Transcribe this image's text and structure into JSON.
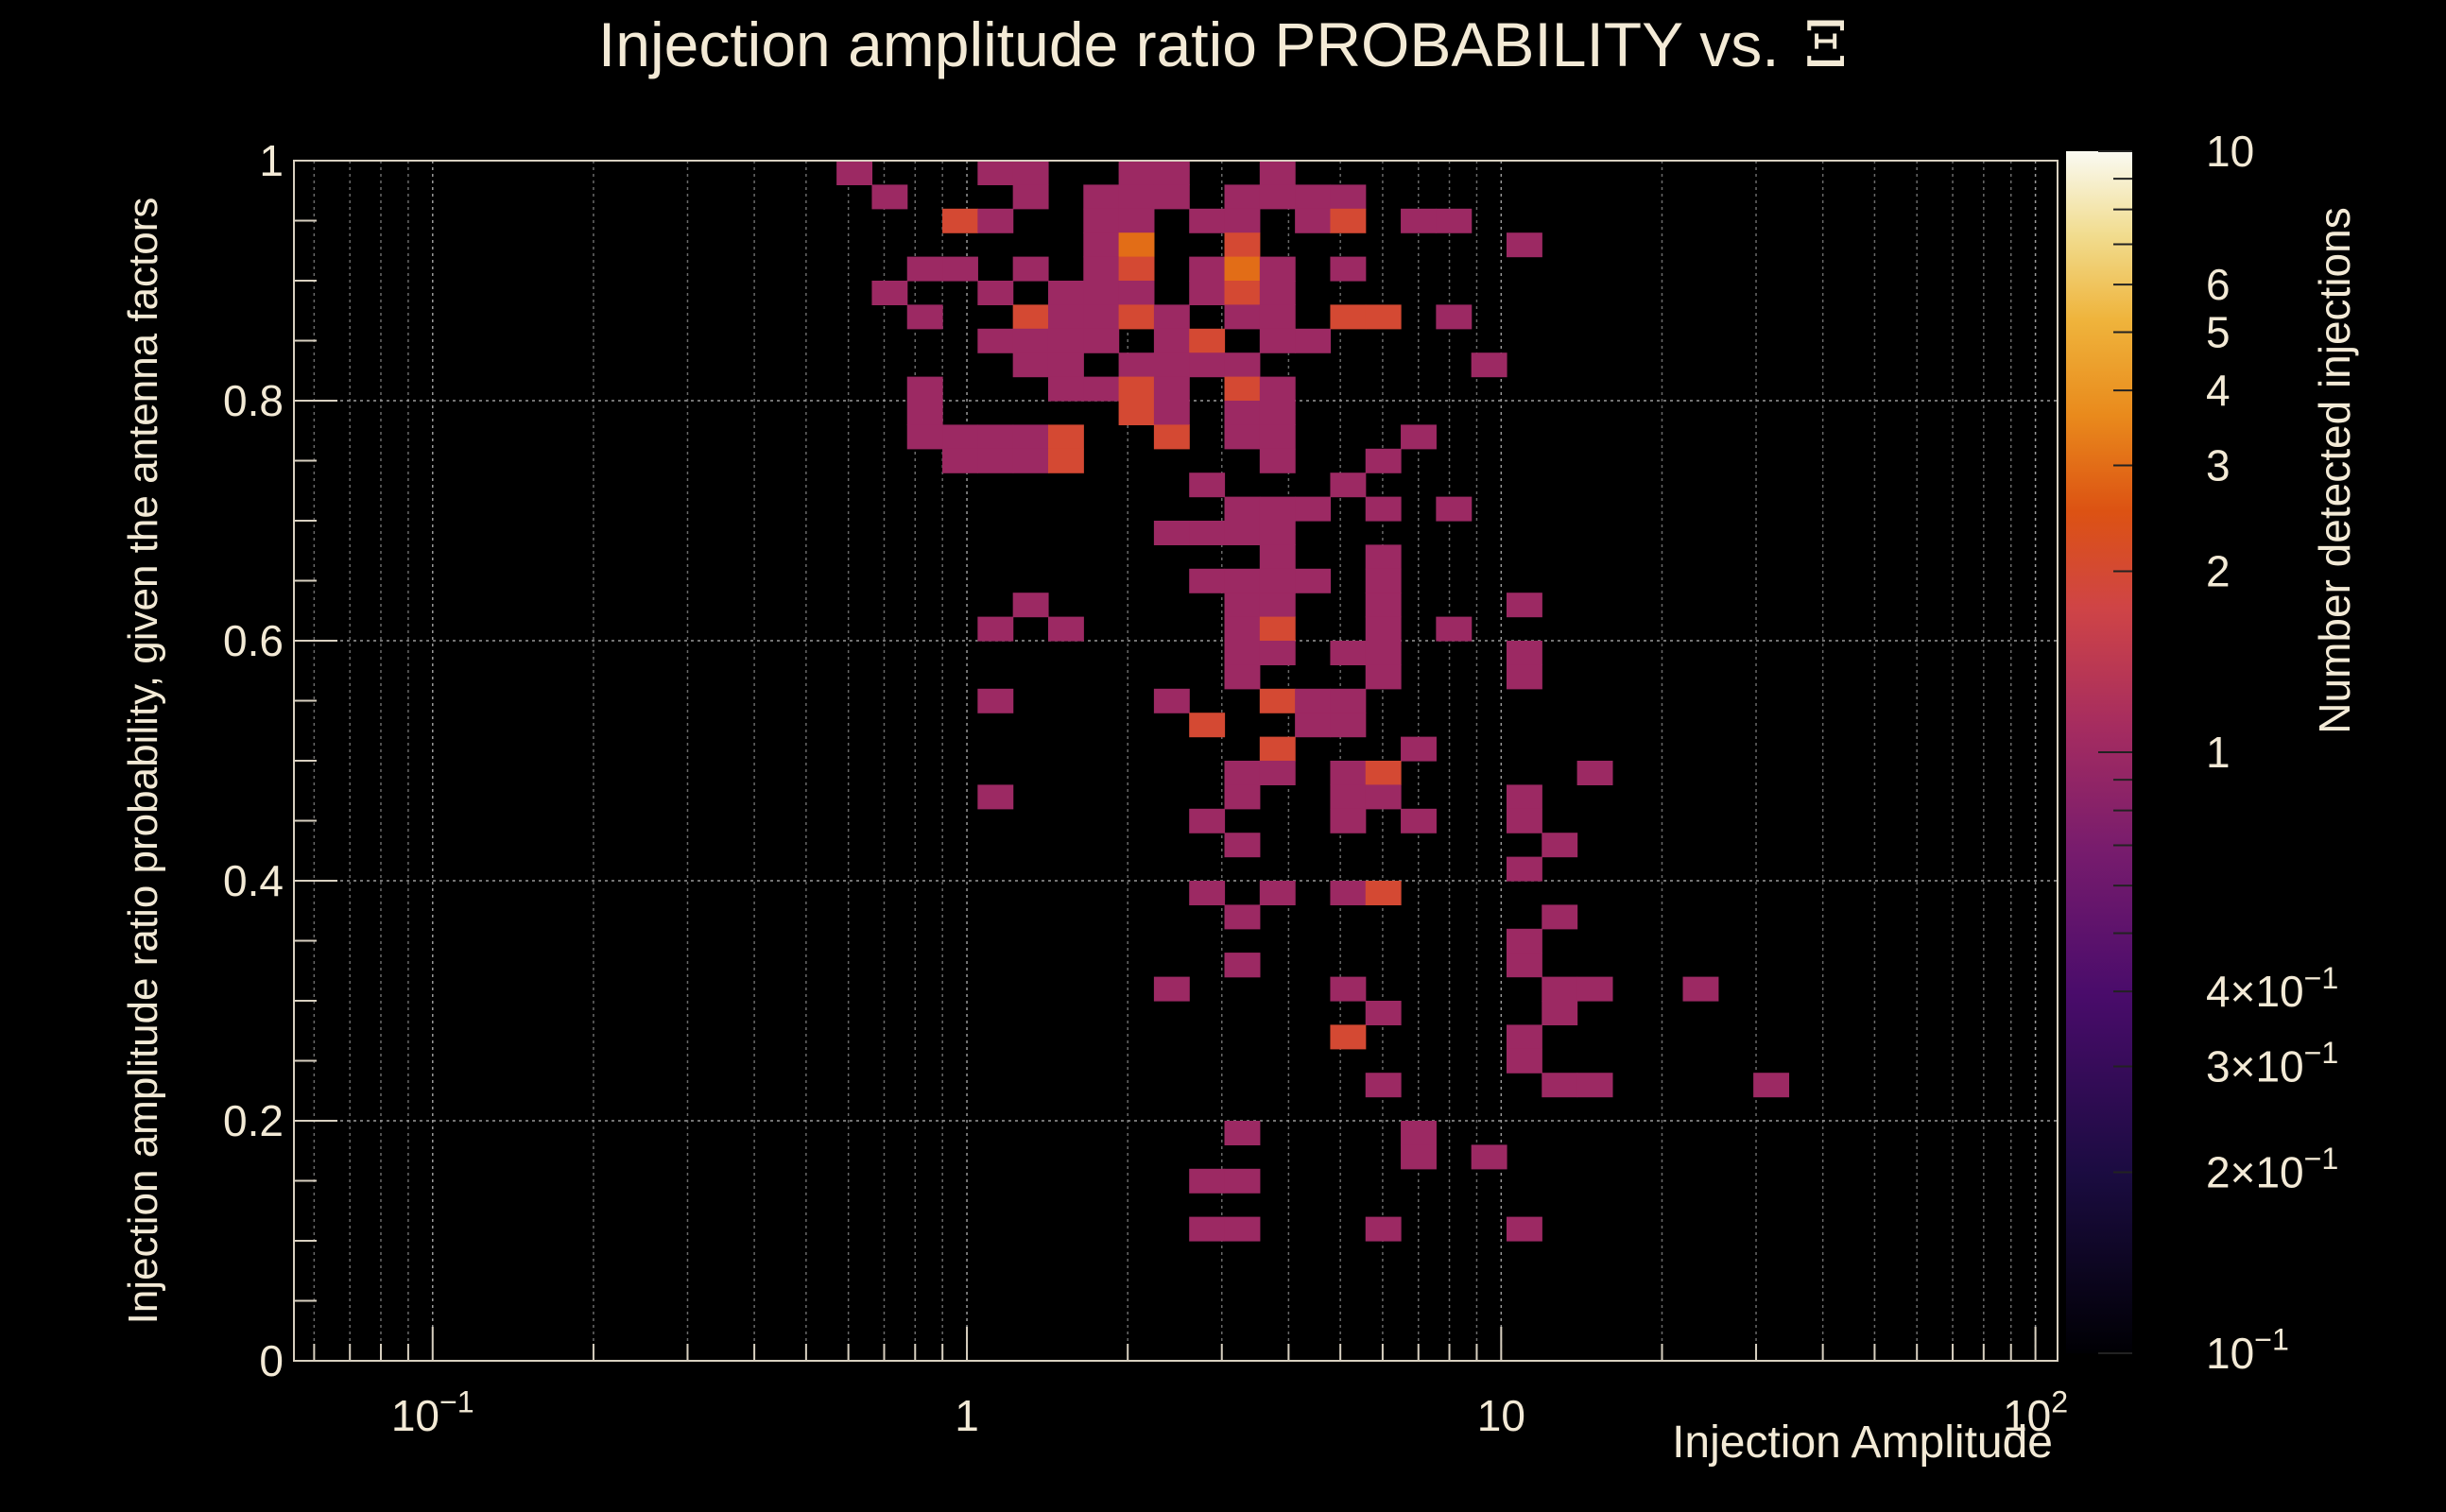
{
  "chart_data": {
    "type": "heatmap",
    "title": "Injection amplitude ratio PROBABILITY vs.",
    "title_symbol": "Ξ",
    "xlabel": "Injection Amplitude",
    "ylabel": "Injection amplitude ratio probability, given the antenna factors",
    "zlabel": "Number detected injections",
    "x_scale": "log",
    "xlim": [
      0.055,
      110
    ],
    "ylim": [
      0,
      1
    ],
    "z_scale": "log",
    "zlim": [
      0.1,
      10
    ],
    "grid": true,
    "x_tick_labels": [
      {
        "value": 0.1,
        "mant": "10",
        "exp": "−1"
      },
      {
        "value": 1,
        "mant": "1",
        "exp": ""
      },
      {
        "value": 10,
        "mant": "10",
        "exp": ""
      },
      {
        "value": 100,
        "mant": "10",
        "exp": "2"
      }
    ],
    "y_tick_labels": [
      {
        "value": 0,
        "label": "0"
      },
      {
        "value": 0.2,
        "label": "0.2"
      },
      {
        "value": 0.4,
        "label": "0.4"
      },
      {
        "value": 0.6,
        "label": "0.6"
      },
      {
        "value": 0.8,
        "label": "0.8"
      },
      {
        "value": 1,
        "label": "1"
      }
    ],
    "z_tick_labels": [
      {
        "value": 10,
        "mant": "10",
        "exp": ""
      },
      {
        "value": 6,
        "mant": "6",
        "exp": ""
      },
      {
        "value": 5,
        "mant": "5",
        "exp": ""
      },
      {
        "value": 4,
        "mant": "4",
        "exp": ""
      },
      {
        "value": 3,
        "mant": "3",
        "exp": ""
      },
      {
        "value": 2,
        "mant": "2",
        "exp": ""
      },
      {
        "value": 1,
        "mant": "1",
        "exp": ""
      },
      {
        "value": 0.4,
        "mant": "4×10",
        "exp": "−1"
      },
      {
        "value": 0.3,
        "mant": "3×10",
        "exp": "−1"
      },
      {
        "value": 0.2,
        "mant": "2×10",
        "exp": "−1"
      },
      {
        "value": 0.1,
        "mant": "10",
        "exp": "−1"
      }
    ],
    "bins": {
      "x_log_range": [
        -1.3,
        2.0
      ],
      "x_bins": 50,
      "y_bins": 50,
      "cells_ix_iy_count": [
        [
          16,
          49,
          1
        ],
        [
          20,
          49,
          1
        ],
        [
          21,
          49,
          1
        ],
        [
          24,
          49,
          1
        ],
        [
          25,
          49,
          1
        ],
        [
          28,
          49,
          1
        ],
        [
          17,
          48,
          1
        ],
        [
          21,
          48,
          1
        ],
        [
          23,
          48,
          1
        ],
        [
          24,
          48,
          1
        ],
        [
          25,
          48,
          1
        ],
        [
          27,
          48,
          1
        ],
        [
          28,
          48,
          1
        ],
        [
          29,
          48,
          1
        ],
        [
          30,
          48,
          1
        ],
        [
          19,
          47,
          2
        ],
        [
          20,
          47,
          1
        ],
        [
          23,
          47,
          1
        ],
        [
          24,
          47,
          1
        ],
        [
          26,
          47,
          1
        ],
        [
          27,
          47,
          1
        ],
        [
          29,
          47,
          1
        ],
        [
          30,
          47,
          2
        ],
        [
          32,
          47,
          1
        ],
        [
          33,
          47,
          1
        ],
        [
          23,
          46,
          1
        ],
        [
          24,
          46,
          3
        ],
        [
          27,
          46,
          2
        ],
        [
          35,
          46,
          1
        ],
        [
          18,
          45,
          1
        ],
        [
          19,
          45,
          1
        ],
        [
          21,
          45,
          1
        ],
        [
          23,
          45,
          1
        ],
        [
          24,
          45,
          2
        ],
        [
          26,
          45,
          1
        ],
        [
          27,
          45,
          3
        ],
        [
          28,
          45,
          1
        ],
        [
          30,
          45,
          1
        ],
        [
          17,
          44,
          1
        ],
        [
          20,
          44,
          1
        ],
        [
          22,
          44,
          1
        ],
        [
          23,
          44,
          1
        ],
        [
          24,
          44,
          1
        ],
        [
          26,
          44,
          1
        ],
        [
          27,
          44,
          2
        ],
        [
          28,
          44,
          1
        ],
        [
          18,
          43,
          1
        ],
        [
          21,
          43,
          2
        ],
        [
          22,
          43,
          1
        ],
        [
          23,
          43,
          1
        ],
        [
          24,
          43,
          2
        ],
        [
          25,
          43,
          1
        ],
        [
          27,
          43,
          1
        ],
        [
          28,
          43,
          1
        ],
        [
          30,
          43,
          2
        ],
        [
          31,
          43,
          2
        ],
        [
          33,
          43,
          1
        ],
        [
          20,
          42,
          1
        ],
        [
          21,
          42,
          1
        ],
        [
          22,
          42,
          1
        ],
        [
          23,
          42,
          1
        ],
        [
          25,
          42,
          1
        ],
        [
          26,
          42,
          2
        ],
        [
          28,
          42,
          1
        ],
        [
          29,
          42,
          1
        ],
        [
          21,
          41,
          1
        ],
        [
          22,
          41,
          1
        ],
        [
          24,
          41,
          1
        ],
        [
          25,
          41,
          1
        ],
        [
          26,
          41,
          1
        ],
        [
          27,
          41,
          1
        ],
        [
          34,
          41,
          1
        ],
        [
          18,
          40,
          1
        ],
        [
          22,
          40,
          1
        ],
        [
          23,
          40,
          1
        ],
        [
          24,
          40,
          2
        ],
        [
          25,
          40,
          1
        ],
        [
          27,
          40,
          2
        ],
        [
          28,
          40,
          1
        ],
        [
          18,
          39,
          1
        ],
        [
          24,
          39,
          2
        ],
        [
          25,
          39,
          1
        ],
        [
          27,
          39,
          1
        ],
        [
          28,
          39,
          1
        ],
        [
          18,
          38,
          1
        ],
        [
          19,
          38,
          1
        ],
        [
          20,
          38,
          1
        ],
        [
          21,
          38,
          1
        ],
        [
          22,
          38,
          2
        ],
        [
          25,
          38,
          2
        ],
        [
          27,
          38,
          1
        ],
        [
          28,
          38,
          1
        ],
        [
          32,
          38,
          1
        ],
        [
          19,
          37,
          1
        ],
        [
          20,
          37,
          1
        ],
        [
          21,
          37,
          1
        ],
        [
          22,
          37,
          2
        ],
        [
          28,
          37,
          1
        ],
        [
          31,
          37,
          1
        ],
        [
          26,
          36,
          1
        ],
        [
          30,
          36,
          1
        ],
        [
          27,
          35,
          1
        ],
        [
          28,
          35,
          1
        ],
        [
          29,
          35,
          1
        ],
        [
          31,
          35,
          1
        ],
        [
          33,
          35,
          1
        ],
        [
          25,
          34,
          1
        ],
        [
          26,
          34,
          1
        ],
        [
          27,
          34,
          1
        ],
        [
          28,
          34,
          1
        ],
        [
          28,
          33,
          1
        ],
        [
          31,
          33,
          1
        ],
        [
          26,
          32,
          1
        ],
        [
          27,
          32,
          1
        ],
        [
          28,
          32,
          1
        ],
        [
          29,
          32,
          1
        ],
        [
          31,
          32,
          1
        ],
        [
          21,
          31,
          1
        ],
        [
          27,
          31,
          1
        ],
        [
          28,
          31,
          1
        ],
        [
          31,
          31,
          1
        ],
        [
          35,
          31,
          1
        ],
        [
          20,
          30,
          1
        ],
        [
          22,
          30,
          1
        ],
        [
          27,
          30,
          1
        ],
        [
          28,
          30,
          2
        ],
        [
          31,
          30,
          1
        ],
        [
          33,
          30,
          1
        ],
        [
          27,
          29,
          1
        ],
        [
          28,
          29,
          1
        ],
        [
          30,
          29,
          1
        ],
        [
          31,
          29,
          1
        ],
        [
          35,
          29,
          1
        ],
        [
          27,
          28,
          1
        ],
        [
          31,
          28,
          1
        ],
        [
          35,
          28,
          1
        ],
        [
          20,
          27,
          1
        ],
        [
          25,
          27,
          1
        ],
        [
          28,
          27,
          2
        ],
        [
          29,
          27,
          1
        ],
        [
          30,
          27,
          1
        ],
        [
          26,
          26,
          2
        ],
        [
          29,
          26,
          1
        ],
        [
          30,
          26,
          1
        ],
        [
          28,
          25,
          2
        ],
        [
          32,
          25,
          1
        ],
        [
          27,
          24,
          1
        ],
        [
          28,
          24,
          1
        ],
        [
          30,
          24,
          1
        ],
        [
          31,
          24,
          2
        ],
        [
          37,
          24,
          1
        ],
        [
          20,
          23,
          1
        ],
        [
          27,
          23,
          1
        ],
        [
          30,
          23,
          1
        ],
        [
          31,
          23,
          1
        ],
        [
          35,
          23,
          1
        ],
        [
          26,
          22,
          1
        ],
        [
          30,
          22,
          1
        ],
        [
          32,
          22,
          1
        ],
        [
          35,
          22,
          1
        ],
        [
          27,
          21,
          1
        ],
        [
          36,
          21,
          1
        ],
        [
          35,
          20,
          1
        ],
        [
          26,
          19,
          1
        ],
        [
          28,
          19,
          1
        ],
        [
          30,
          19,
          1
        ],
        [
          31,
          19,
          2
        ],
        [
          27,
          18,
          1
        ],
        [
          36,
          18,
          1
        ],
        [
          35,
          17,
          1
        ],
        [
          27,
          16,
          1
        ],
        [
          27,
          16,
          1
        ],
        [
          35,
          16,
          1
        ],
        [
          25,
          15,
          1
        ],
        [
          30,
          15,
          1
        ],
        [
          36,
          15,
          1
        ],
        [
          37,
          15,
          1
        ],
        [
          40,
          15,
          1
        ],
        [
          31,
          14,
          1
        ],
        [
          36,
          14,
          1
        ],
        [
          30,
          13,
          2
        ],
        [
          35,
          13,
          1
        ],
        [
          35,
          12,
          1
        ],
        [
          31,
          11,
          1
        ],
        [
          36,
          11,
          1
        ],
        [
          37,
          11,
          1
        ],
        [
          42,
          11,
          1
        ],
        [
          27,
          9,
          1
        ],
        [
          32,
          9,
          1
        ],
        [
          32,
          8,
          1
        ],
        [
          34,
          8,
          1
        ],
        [
          26,
          7,
          1
        ],
        [
          27,
          7,
          1
        ],
        [
          26,
          5,
          1
        ],
        [
          27,
          5,
          1
        ],
        [
          31,
          5,
          1
        ],
        [
          35,
          5,
          1
        ]
      ]
    }
  }
}
